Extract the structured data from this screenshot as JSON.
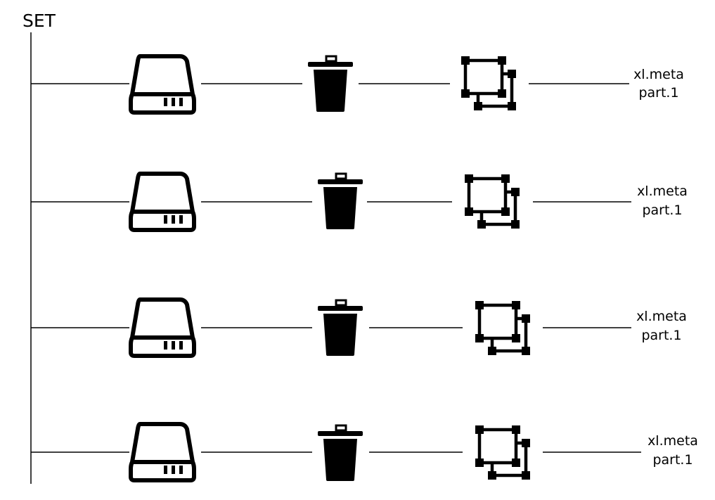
{
  "set": {
    "label": "SET"
  },
  "rows": [
    {
      "drive_icon": "drive-icon",
      "bucket_icon": "trash-bin-icon",
      "object_icon": "object-shapes-icon",
      "files": [
        "xl.meta",
        "part.1"
      ]
    },
    {
      "drive_icon": "drive-icon",
      "bucket_icon": "trash-bin-icon",
      "object_icon": "object-shapes-icon",
      "files": [
        "xl.meta",
        "part.1"
      ]
    },
    {
      "drive_icon": "drive-icon",
      "bucket_icon": "trash-bin-icon",
      "object_icon": "object-shapes-icon",
      "files": [
        "xl.meta",
        "part.1"
      ]
    },
    {
      "drive_icon": "drive-icon",
      "bucket_icon": "trash-bin-icon",
      "object_icon": "object-shapes-icon",
      "files": [
        "xl.meta",
        "part.1"
      ]
    }
  ],
  "colors": {
    "stroke": "#000000",
    "background": "#ffffff"
  }
}
